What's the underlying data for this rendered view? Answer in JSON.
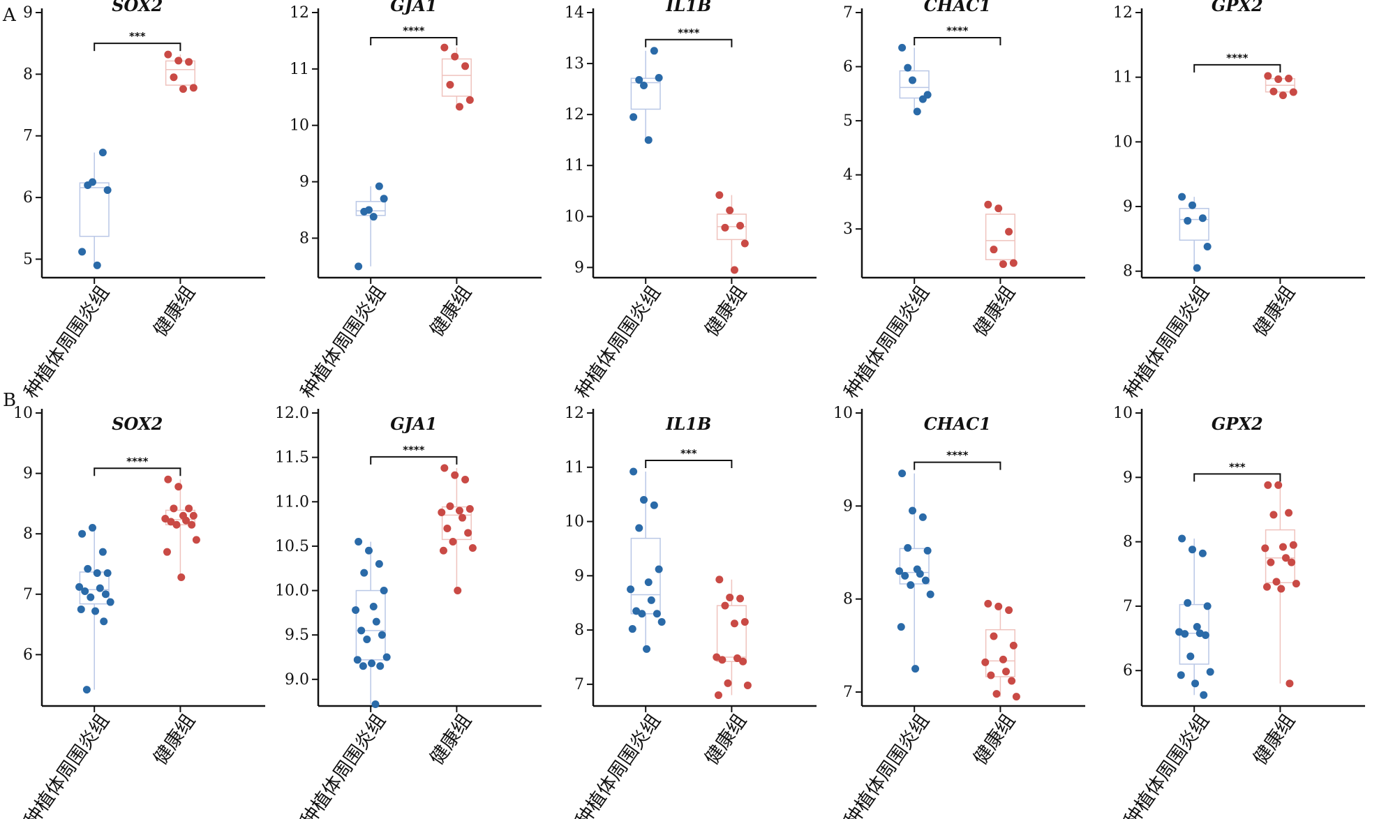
{
  "panel_labels": [
    "A",
    "B"
  ],
  "colors": {
    "group1": "#2a6aa8",
    "group2": "#c94a45",
    "box1": "#b9c7e6",
    "box2": "#efc2bd",
    "axis": "#111111"
  },
  "chart_data": [
    {
      "type": "box+scatter",
      "row": "A",
      "title": "SOX2",
      "categories": [
        "种植体周围炎组",
        "健康组"
      ],
      "ylim": [
        4.7,
        9.0
      ],
      "yticks": [
        5,
        6,
        7,
        8,
        9
      ],
      "significance": "***",
      "series": [
        {
          "values": [
            5.12,
            6.25,
            6.73,
            6.2,
            6.12,
            4.9
          ]
        },
        {
          "values": [
            8.32,
            8.22,
            8.2,
            7.95,
            7.78,
            7.76
          ]
        }
      ]
    },
    {
      "type": "box+scatter",
      "row": "A",
      "title": "GJA1",
      "categories": [
        "种植体周围炎组",
        "健康组"
      ],
      "ylim": [
        7.3,
        12.0
      ],
      "yticks": [
        8,
        9,
        10,
        11,
        12
      ],
      "significance": "****",
      "series": [
        {
          "values": [
            7.5,
            8.5,
            8.92,
            8.47,
            8.7,
            8.38
          ]
        },
        {
          "values": [
            11.38,
            11.22,
            11.05,
            10.72,
            10.45,
            10.33
          ]
        }
      ]
    },
    {
      "type": "box+scatter",
      "row": "A",
      "title": "IL1B",
      "categories": [
        "种植体周围炎组",
        "健康组"
      ],
      "ylim": [
        8.8,
        14.0
      ],
      "yticks": [
        9,
        10,
        11,
        12,
        13,
        14
      ],
      "significance": "****",
      "series": [
        {
          "values": [
            11.95,
            12.57,
            13.25,
            12.68,
            12.72,
            11.5
          ]
        },
        {
          "values": [
            10.42,
            10.12,
            9.82,
            9.78,
            9.47,
            8.95
          ]
        }
      ]
    },
    {
      "type": "box+scatter",
      "row": "A",
      "title": "CHAC1",
      "categories": [
        "种植体周围炎组",
        "健康组"
      ],
      "ylim": [
        2.1,
        7.0
      ],
      "yticks": [
        3,
        4,
        5,
        6,
        7
      ],
      "significance": "****",
      "series": [
        {
          "values": [
            6.35,
            5.75,
            5.4,
            5.98,
            5.48,
            5.17
          ]
        },
        {
          "values": [
            3.45,
            3.38,
            2.95,
            2.62,
            2.37,
            2.35
          ]
        }
      ]
    },
    {
      "type": "box+scatter",
      "row": "A",
      "title": "GPX2",
      "categories": [
        "种植体周围炎组",
        "健康组"
      ],
      "ylim": [
        7.9,
        12.0
      ],
      "yticks": [
        8,
        9,
        10,
        11,
        12
      ],
      "significance": "****",
      "series": [
        {
          "values": [
            9.15,
            9.02,
            8.82,
            8.78,
            8.38,
            8.05
          ]
        },
        {
          "values": [
            11.02,
            10.97,
            10.98,
            10.78,
            10.77,
            10.72
          ]
        }
      ]
    },
    {
      "type": "box+scatter",
      "row": "B",
      "title": "SOX2",
      "categories": [
        "种植体周围炎组",
        "健康组"
      ],
      "ylim": [
        5.15,
        10.0
      ],
      "yticks": [
        6,
        7,
        8,
        9,
        10
      ],
      "significance": "****",
      "series": [
        {
          "values": [
            8.0,
            8.1,
            7.7,
            7.42,
            7.35,
            7.35,
            7.12,
            7.1,
            7.05,
            7.0,
            6.95,
            6.87,
            6.75,
            6.72,
            6.55,
            5.42
          ]
        },
        {
          "values": [
            8.9,
            8.78,
            8.42,
            8.42,
            8.3,
            8.3,
            8.25,
            8.22,
            8.2,
            8.15,
            8.15,
            7.9,
            7.7,
            7.28
          ]
        }
      ]
    },
    {
      "type": "box+scatter",
      "row": "B",
      "title": "GJA1",
      "categories": [
        "种植体周围炎组",
        "健康组"
      ],
      "ylim": [
        8.7,
        12.0
      ],
      "yticks": [
        9.0,
        9.5,
        10.0,
        10.5,
        11.0,
        11.5,
        12.0
      ],
      "significance": "****",
      "series": [
        {
          "values": [
            10.55,
            10.45,
            10.3,
            10.2,
            10.0,
            9.82,
            9.78,
            9.65,
            9.55,
            9.5,
            9.45,
            9.25,
            9.22,
            9.18,
            9.15,
            9.15,
            8.72
          ]
        },
        {
          "values": [
            11.38,
            11.3,
            11.25,
            10.95,
            10.92,
            10.9,
            10.88,
            10.82,
            10.7,
            10.65,
            10.55,
            10.48,
            10.45,
            10.0
          ]
        }
      ]
    },
    {
      "type": "box+scatter",
      "row": "B",
      "title": "IL1B",
      "categories": [
        "种植体周围炎组",
        "健康组"
      ],
      "ylim": [
        6.6,
        12.0
      ],
      "yticks": [
        7,
        8,
        9,
        10,
        11,
        12
      ],
      "significance": "***",
      "series": [
        {
          "values": [
            10.92,
            10.4,
            10.3,
            9.88,
            9.12,
            8.88,
            8.75,
            8.55,
            8.35,
            8.3,
            8.3,
            8.15,
            8.02,
            7.65
          ]
        },
        {
          "values": [
            8.93,
            8.6,
            8.58,
            8.45,
            8.15,
            8.12,
            7.5,
            7.48,
            7.45,
            7.42,
            7.02,
            6.98,
            6.8
          ]
        }
      ]
    },
    {
      "type": "box+scatter",
      "row": "B",
      "title": "CHAC1",
      "categories": [
        "种植体周围炎组",
        "健康组"
      ],
      "ylim": [
        6.85,
        10.0
      ],
      "yticks": [
        7,
        8,
        9,
        10
      ],
      "significance": "****",
      "series": [
        {
          "values": [
            9.35,
            8.95,
            8.88,
            8.55,
            8.52,
            8.32,
            8.3,
            8.27,
            8.25,
            8.2,
            8.15,
            8.05,
            7.7,
            7.25
          ]
        },
        {
          "values": [
            7.95,
            7.92,
            7.88,
            7.6,
            7.5,
            7.35,
            7.32,
            7.22,
            7.18,
            7.12,
            6.98,
            6.95
          ]
        }
      ]
    },
    {
      "type": "box+scatter",
      "row": "B",
      "title": "GPX2",
      "categories": [
        "种植体周围炎组",
        "健康组"
      ],
      "ylim": [
        5.45,
        10.0
      ],
      "yticks": [
        6,
        7,
        8,
        9,
        10
      ],
      "significance": "***",
      "series": [
        {
          "values": [
            8.05,
            7.88,
            7.82,
            7.05,
            7.0,
            6.68,
            6.6,
            6.58,
            6.57,
            6.55,
            6.22,
            5.98,
            5.93,
            5.8,
            5.62
          ]
        },
        {
          "values": [
            8.88,
            8.88,
            8.45,
            8.42,
            7.95,
            7.92,
            7.9,
            7.75,
            7.68,
            7.68,
            7.38,
            7.35,
            7.3,
            7.27,
            5.8
          ]
        }
      ]
    }
  ]
}
